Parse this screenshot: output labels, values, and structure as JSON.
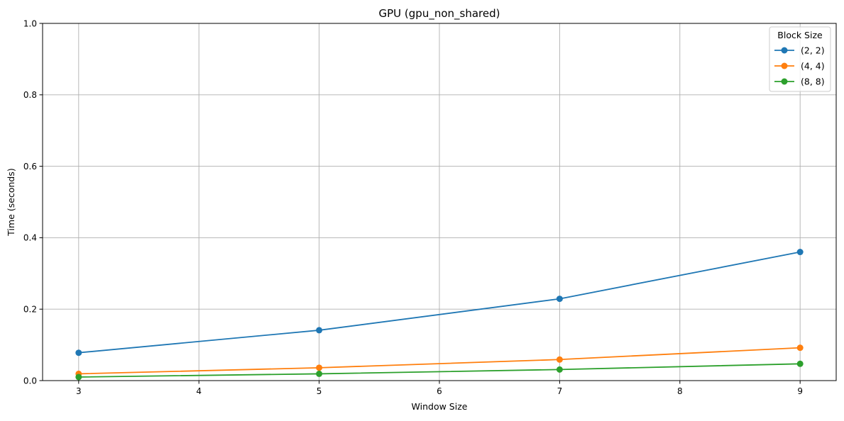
{
  "chart_data": {
    "type": "line",
    "title": "GPU (gpu_non_shared)",
    "xlabel": "Window Size",
    "ylabel": "Time (seconds)",
    "x": [
      3,
      5,
      7,
      9
    ],
    "xlim": [
      2.7,
      9.3
    ],
    "ylim": [
      0,
      1.0
    ],
    "xticks": [
      3,
      4,
      5,
      6,
      7,
      8,
      9
    ],
    "yticks": [
      0.0,
      0.2,
      0.4,
      0.6,
      0.8,
      1.0
    ],
    "xtick_labels": [
      "3",
      "4",
      "5",
      "6",
      "7",
      "8",
      "9"
    ],
    "ytick_labels": [
      "0.0",
      "0.2",
      "0.4",
      "0.6",
      "0.8",
      "1.0"
    ],
    "grid": true,
    "legend": {
      "title": "Block Size",
      "placement": "top-right"
    },
    "series": [
      {
        "name": "(2, 2)",
        "color": "#1f77b4",
        "values": [
          0.078,
          0.141,
          0.229,
          0.36
        ]
      },
      {
        "name": "(4, 4)",
        "color": "#ff7f0e",
        "values": [
          0.019,
          0.036,
          0.059,
          0.092
        ]
      },
      {
        "name": "(8, 8)",
        "color": "#2ca02c",
        "values": [
          0.01,
          0.019,
          0.031,
          0.047
        ]
      }
    ]
  }
}
